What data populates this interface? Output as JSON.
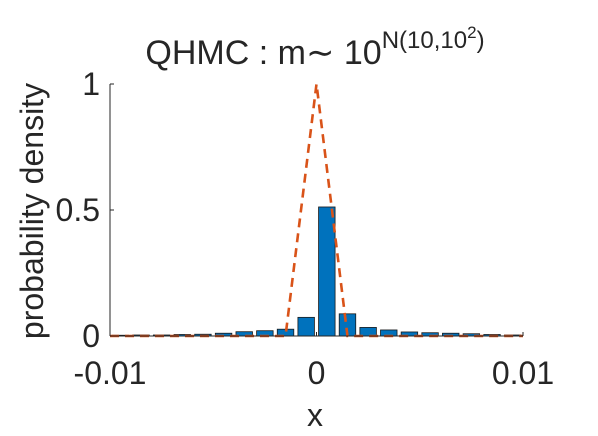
{
  "chart_data": {
    "type": "bar",
    "title": {
      "base": "QHMC : m",
      "tilde": "∼",
      "ten": " 10",
      "exp_prefix": "N(10,10",
      "exp_sup": "2",
      "exp_suffix": ")"
    },
    "xlabel": "x",
    "ylabel": "probability density",
    "xlim": [
      -0.01,
      0.01
    ],
    "ylim": [
      0,
      1
    ],
    "xticks": [
      -0.01,
      0,
      0.01
    ],
    "xtick_labels": [
      "-0.01",
      "0",
      "0.01"
    ],
    "yticks": [
      0,
      0.5,
      1
    ],
    "ytick_labels": [
      "0",
      "0.5",
      "1"
    ],
    "grid": false,
    "legend": "none",
    "bar_color": "#0072BD",
    "bar_edge_color": "#1a1a1a",
    "bins": {
      "centers": [
        -0.0095,
        -0.0085,
        -0.0075,
        -0.0065,
        -0.0055,
        -0.0045,
        -0.0035,
        -0.0025,
        -0.0015,
        -0.0005,
        0.0005,
        0.0015,
        0.0025,
        0.0035,
        0.0045,
        0.0055,
        0.0065,
        0.0075,
        0.0085,
        0.0095
      ],
      "width": 0.0008,
      "values": [
        0.003,
        0.004,
        0.004,
        0.006,
        0.007,
        0.011,
        0.017,
        0.021,
        0.027,
        0.074,
        0.512,
        0.088,
        0.034,
        0.024,
        0.016,
        0.013,
        0.011,
        0.009,
        0.006,
        0.004
      ]
    },
    "density_curve": {
      "color": "#D95319",
      "style": "dashed",
      "x": [
        -0.01,
        -0.0015,
        0.0,
        0.0015,
        0.01
      ],
      "y": [
        0,
        0,
        1,
        0,
        0
      ]
    }
  }
}
